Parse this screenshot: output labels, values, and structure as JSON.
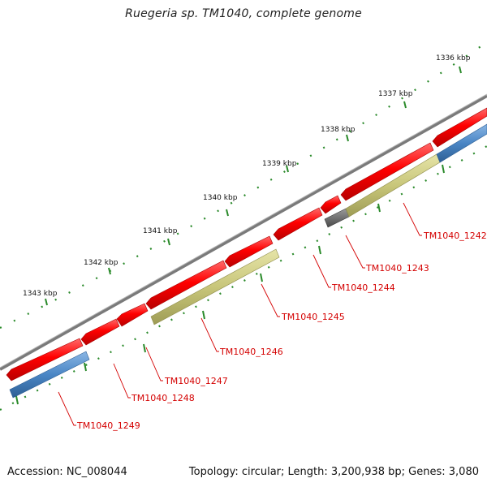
{
  "title": "Ruegeria sp. TM1040, complete genome",
  "footer": {
    "accession": "Accession: NC_008044",
    "summary": "Topology: circular; Length: 3,200,938 bp; Genes: 3,080"
  },
  "kbp_labels": [
    "1336 kbp",
    "1337 kbp",
    "1338 kbp",
    "1339 kbp",
    "1340 kbp",
    "1341 kbp",
    "1342 kbp",
    "1343 kbp"
  ],
  "gene_labels": [
    "TM1040_1242",
    "TM1040_1243",
    "TM1040_1244",
    "TM1040_1245",
    "TM1040_1246",
    "TM1040_1247",
    "TM1040_1248",
    "TM1040_1249"
  ],
  "colors": {
    "forward_gene": "#ff0000",
    "reverse_cds": "#c8c67a",
    "reverse_blue": "#4a86c5",
    "reverse_gray": "#6d6d6d",
    "backbone": "#7a7a7a",
    "ticks": "#2a8a2a",
    "label": "#d40000"
  }
}
